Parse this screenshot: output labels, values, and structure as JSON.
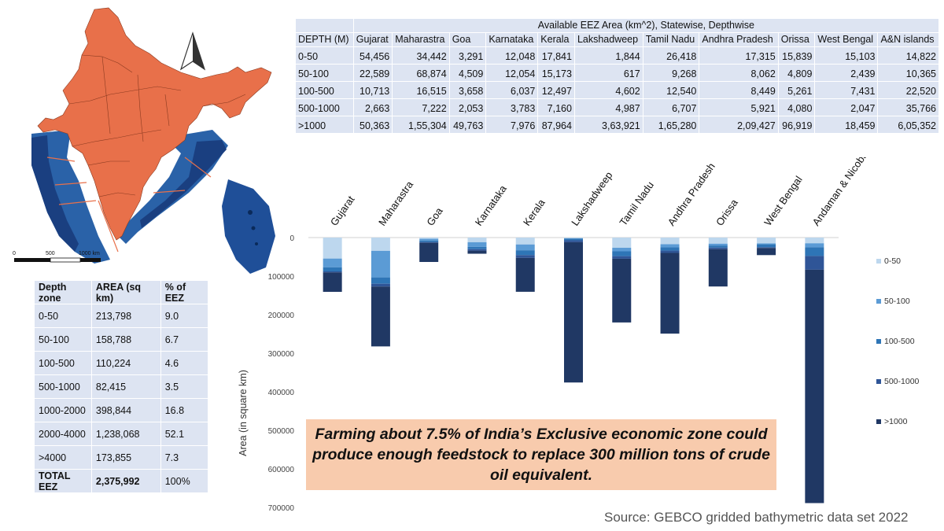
{
  "top_table": {
    "title": "Available EEZ Area (km^2), Statewise, Depthwise",
    "header": [
      "DEPTH (M)",
      "Gujarat",
      "Maharastra",
      "Goa",
      "Karnataka",
      "Kerala",
      "Lakshadweep",
      "Tamil Nadu",
      "Andhra Pradesh",
      "Orissa",
      "West Bengal",
      "A&N islands"
    ],
    "rows": [
      [
        "0-50",
        "54,456",
        "34,442",
        "3,291",
        "12,048",
        "17,841",
        "1,844",
        "26,418",
        "17,315",
        "15,839",
        "15,103",
        "14,822"
      ],
      [
        "50-100",
        "22,589",
        "68,874",
        "4,509",
        "12,054",
        "15,173",
        "617",
        "9,268",
        "8,062",
        "4,809",
        "2,439",
        "10,365"
      ],
      [
        "100-500",
        "10,713",
        "16,515",
        "3,658",
        "6,037",
        "12,497",
        "4,602",
        "12,540",
        "8,449",
        "5,261",
        "7,431",
        "22,520"
      ],
      [
        "500-1000",
        "2,663",
        "7,222",
        "2,053",
        "3,783",
        "7,160",
        "4,987",
        "6,707",
        "5,921",
        "4,080",
        "2,047",
        "35,766"
      ],
      [
        ">1000",
        "50,363",
        "1,55,304",
        "49,763",
        "7,976",
        "87,964",
        "3,63,921",
        "1,65,280",
        "2,09,427",
        "96,919",
        "18,459",
        "6,05,352"
      ]
    ]
  },
  "left_table": {
    "header": [
      "Depth zone",
      "AREA (sq km)",
      "% of EEZ"
    ],
    "rows": [
      [
        "0-50",
        "213,798",
        "9.0"
      ],
      [
        "50-100",
        "158,788",
        "6.7"
      ],
      [
        "100-500",
        "110,224",
        "4.6"
      ],
      [
        "500-1000",
        "82,415",
        "3.5"
      ],
      [
        "1000-2000",
        "398,844",
        "16.8"
      ],
      [
        "2000-4000",
        "1,238,068",
        "52.1"
      ],
      [
        ">4000",
        "173,855",
        "7.3"
      ]
    ],
    "total": [
      "TOTAL EEZ",
      "2,375,992",
      "100%"
    ]
  },
  "map": {
    "scale_labels": [
      "0",
      "500",
      "1000 km"
    ],
    "land_color": "#e8704a",
    "sea_color": "#2a62a8"
  },
  "chart_data": {
    "type": "bar",
    "stacked": true,
    "orientation": "downward",
    "categories": [
      "Gujarat",
      "Maharastra",
      "Goa",
      "Karnataka",
      "Kerala",
      "Lakshadweep",
      "Tamil Nadu",
      "Andhra Pradesh",
      "Orissa",
      "West Bengal",
      "Andaman & Nicobar"
    ],
    "series": [
      {
        "name": "0-50",
        "color": "#bdd7ee",
        "values": [
          54456,
          34442,
          3291,
          12048,
          17841,
          1844,
          26418,
          17315,
          15839,
          15103,
          14822
        ]
      },
      {
        "name": "50-100",
        "color": "#5b9bd5",
        "values": [
          22589,
          68874,
          4509,
          12054,
          15173,
          617,
          9268,
          8062,
          4809,
          2439,
          10365
        ]
      },
      {
        "name": "100-500",
        "color": "#2e75b6",
        "values": [
          10713,
          16515,
          3658,
          6037,
          12497,
          4602,
          12540,
          8449,
          5261,
          7431,
          22520
        ]
      },
      {
        "name": "500-1000",
        "color": "#2f5597",
        "values": [
          2663,
          7222,
          2053,
          3783,
          7160,
          4987,
          6707,
          5921,
          4080,
          2047,
          35766
        ]
      },
      {
        "name": ">1000",
        "color": "#203864",
        "values": [
          50363,
          155304,
          49763,
          7976,
          87964,
          363921,
          165280,
          209427,
          96919,
          18459,
          605352
        ]
      }
    ],
    "ylabel": "Area (in square km)",
    "ylim": [
      0,
      700000
    ],
    "yticks": [
      0,
      100000,
      200000,
      300000,
      400000,
      500000,
      600000,
      700000
    ],
    "legend": "right"
  },
  "callout": {
    "text": "Farming about 7.5% of  India’s Exclusive economic zone could produce enough feedstock  to replace 300 million tons of crude oil equivalent."
  },
  "source": "Source: GEBCO gridded bathymetric data set 2022"
}
